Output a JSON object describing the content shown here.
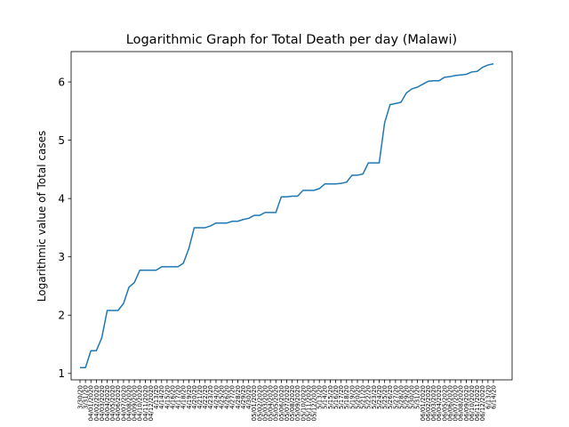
{
  "chart_data": {
    "type": "line",
    "title": "Logarithmic Graph for Total Death per day (Malawi)",
    "xlabel": "",
    "ylabel": "Logarithmic value of Total cases",
    "ylim": [
      0.89,
      6.52
    ],
    "yticks": [
      1,
      2,
      3,
      4,
      5,
      6
    ],
    "grid": false,
    "legend": "none",
    "color": "#1f77b4",
    "x": [
      "3/30/20",
      "3/31/20",
      "04/01/2020",
      "04/02/2020",
      "04/03/2020",
      "04/04/2020",
      "04/05/2020",
      "04/06/2020",
      "04/07/2020",
      "04/08/2020",
      "04/09/2020",
      "04/10/2020",
      "04/11/2020",
      "04/12/2020",
      "4/13/20",
      "4/14/20",
      "4/15/20",
      "4/16/20",
      "4/17/20",
      "4/18/20",
      "4/19/20",
      "4/20/20",
      "4/21/20",
      "4/22/20",
      "4/23/20",
      "4/24/20",
      "4/25/20",
      "4/26/20",
      "4/27/20",
      "4/28/20",
      "4/29/20",
      "4/30/20",
      "05/01/2020",
      "05/02/2020",
      "05/03/2020",
      "05/04/2020",
      "05/05/2020",
      "05/06/2020",
      "05/07/2020",
      "05/08/2020",
      "05/09/2020",
      "05/10/2020",
      "05/11/2020",
      "05/12/2020",
      "5/13/20",
      "5/14/20",
      "5/15/20",
      "5/16/20",
      "5/17/20",
      "5/18/20",
      "5/19/20",
      "5/20/20",
      "5/21/20",
      "5/22/20",
      "5/23/20",
      "5/24/20",
      "5/25/20",
      "5/26/20",
      "5/27/20",
      "5/28/20",
      "5/29/20",
      "5/30/20",
      "5/31/20",
      "06/01/2020",
      "06/02/2020",
      "06/03/2020",
      "06/04/2020",
      "06/05/2020",
      "06/06/2020",
      "06/07/2020",
      "06/08/2020",
      "06/09/2020",
      "06/10/2020",
      "06/11/2020",
      "06/12/2020",
      "6/13/20",
      "6/14/20"
    ],
    "visible_tick_labels": [
      "3/30/20",
      "3/31/20",
      "04/01/2020",
      "04/02/2020",
      "04/03/2020",
      "04/04/2020",
      "04/05/2020",
      "04/06/2020",
      "04/07/2020",
      "04/08/2020",
      "04/09/2020",
      "04/10/2020",
      "04/11/2020",
      "04/12/2020",
      "4/13/20",
      "4/14/20",
      "4/15/20",
      "4/16/20",
      "4/17/20",
      "4/18/20",
      "4/19/20",
      "4/20/20",
      "4/21/20",
      "4/22/20",
      "4/23/20",
      "4/24/20",
      "4/25/20",
      "4/26/20",
      "4/27/20",
      "4/28/20",
      "4/29/20",
      "4/30/20",
      "05/01/2020",
      "05/02/2020",
      "05/03/2020",
      "05/04/2020",
      "05/05/2020",
      "05/06/2020",
      "05/07/2020",
      "05/08/2020",
      "05/09/2020",
      "05/10/2020",
      "05/11/2020",
      "05/12/2020",
      "5/13/20",
      "5/14/20",
      "5/15/20",
      "5/16/20",
      "5/17/20",
      "5/18/20",
      "5/19/20",
      "5/20/20",
      "5/21/20",
      "5/22/20",
      "5/23/20",
      "5/24/20",
      "5/25/20",
      "5/26/20",
      "5/27/20",
      "5/28/20",
      "5/29/20",
      "5/30/20",
      "5/31/20",
      "06/01/2020",
      "06/02/2020",
      "06/03/2020",
      "06/04/2020",
      "06/05/2020",
      "06/06/2020",
      "06/07/2020",
      "06/08/2020",
      "06/09/2020",
      "06/10/2020",
      "06/11/2020",
      "06/12/2020",
      "6/13/20",
      "6/14/20"
    ],
    "series": [
      {
        "name": "",
        "values": [
          1.1,
          1.1,
          1.39,
          1.39,
          1.61,
          2.08,
          2.08,
          2.08,
          2.2,
          2.48,
          2.56,
          2.77,
          2.77,
          2.77,
          2.77,
          2.83,
          2.83,
          2.83,
          2.83,
          2.89,
          3.14,
          3.5,
          3.5,
          3.5,
          3.53,
          3.58,
          3.58,
          3.58,
          3.61,
          3.61,
          3.64,
          3.66,
          3.71,
          3.71,
          3.76,
          3.76,
          3.76,
          4.03,
          4.03,
          4.04,
          4.04,
          4.14,
          4.14,
          4.14,
          4.17,
          4.25,
          4.25,
          4.25,
          4.26,
          4.28,
          4.4,
          4.4,
          4.42,
          4.61,
          4.61,
          4.61,
          5.3,
          5.61,
          5.63,
          5.65,
          5.81,
          5.88,
          5.91,
          5.96,
          6.01,
          6.02,
          6.02,
          6.08,
          6.09,
          6.11,
          6.12,
          6.13,
          6.17,
          6.18,
          6.25,
          6.29,
          6.31
        ]
      }
    ]
  }
}
